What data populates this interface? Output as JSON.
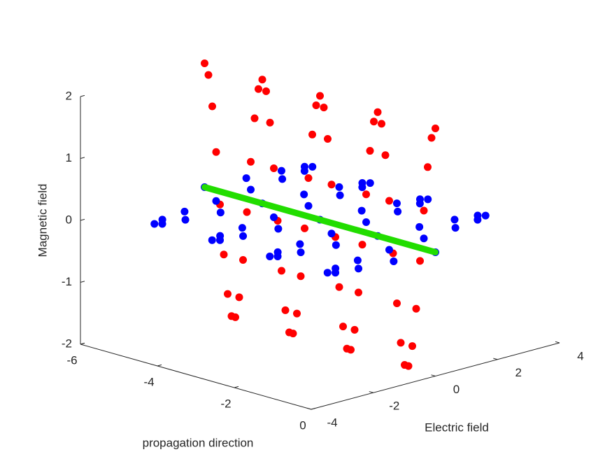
{
  "chart_data": {
    "type": "scatter3d",
    "x_label": "propagation direction",
    "y_label": "Electric field",
    "z_label": "Magnetic field",
    "xlim": [
      -6,
      0
    ],
    "xticks": [
      -6,
      -4,
      -2,
      0
    ],
    "ylim": [
      -4,
      4
    ],
    "yticks": [
      -4,
      -2,
      0,
      2,
      4
    ],
    "zlim": [
      -2,
      2
    ],
    "zticks": [
      -2,
      -1,
      0,
      1,
      2
    ],
    "x": [
      -6,
      -5.9,
      -5.8,
      -5.7,
      -5.6,
      -5.5,
      -5.4,
      -5.3,
      -5.2,
      -5.1,
      -5,
      -4.9,
      -4.8,
      -4.7,
      -4.6,
      -4.5,
      -4.4,
      -4.3,
      -4.2,
      -4.1,
      -4,
      -3.9,
      -3.8,
      -3.7,
      -3.6,
      -3.5,
      -3.4,
      -3.3,
      -3.2,
      -3.1,
      -3,
      -2.9,
      -2.8,
      -2.7,
      -2.6,
      -2.5,
      -2.4,
      -2.3,
      -2.2,
      -2.1,
      -2,
      -1.9,
      -1.8,
      -1.7,
      -1.6,
      -1.5,
      -1.4,
      -1.3,
      -1.2,
      -1.1,
      -1,
      -0.9,
      -0.8,
      -0.7,
      -0.6,
      -0.5,
      -0.4,
      -0.3,
      -0.2,
      -0.1,
      0
    ],
    "series": [
      {
        "type": "scatter",
        "color": "#ff0000",
        "electric": [
          0,
          0,
          0,
          0,
          0,
          0,
          0,
          0,
          0,
          0,
          0,
          0,
          0,
          0,
          0,
          0,
          0,
          0,
          0,
          0,
          0,
          0,
          0,
          0,
          0,
          0,
          0,
          0,
          0,
          0,
          0,
          0,
          0,
          0,
          0,
          0,
          0,
          0,
          0,
          0,
          0,
          0,
          0,
          0,
          0,
          0,
          0,
          0,
          0,
          0,
          0,
          0,
          0,
          0,
          0,
          0,
          0,
          0,
          0,
          0,
          0
        ],
        "magnetic": [
          2,
          1.83,
          1.34,
          0.62,
          -0.21,
          -1,
          -1.62,
          -1.96,
          -1.96,
          -1.62,
          -1,
          -0.21,
          0.62,
          1.34,
          1.83,
          2,
          1.83,
          1.34,
          0.62,
          -0.21,
          -1,
          -1.62,
          -1.96,
          -1.96,
          -1.62,
          -1,
          -0.21,
          0.62,
          1.34,
          1.83,
          2,
          1.83,
          1.34,
          0.62,
          -0.21,
          -1,
          -1.62,
          -1.96,
          -1.96,
          -1.62,
          -1,
          -0.21,
          0.62,
          1.34,
          1.83,
          2,
          1.83,
          1.34,
          0.62,
          -0.21,
          -1,
          -1.62,
          -1.96,
          -1.96,
          -1.62,
          -1,
          -0.21,
          0.62,
          1.34,
          1.83,
          2
        ]
      },
      {
        "type": "scatter",
        "color": "#0000ff",
        "electric": [
          0,
          1.22,
          2.23,
          2.85,
          2.98,
          2.6,
          1.76,
          0.62,
          -0.62,
          -1.76,
          -2.6,
          -2.98,
          -2.85,
          -2.23,
          -1.22,
          0,
          1.22,
          2.23,
          2.85,
          2.98,
          2.6,
          1.76,
          0.62,
          -0.62,
          -1.76,
          -2.6,
          -2.98,
          -2.85,
          -2.23,
          -1.22,
          0,
          1.22,
          2.23,
          2.85,
          2.98,
          2.6,
          1.76,
          0.62,
          -0.62,
          -1.76,
          -2.6,
          -2.98,
          -2.85,
          -2.23,
          -1.22,
          0,
          1.22,
          2.23,
          2.85,
          2.98,
          2.6,
          1.76,
          0.62,
          -0.62,
          -1.76,
          -2.6,
          -2.98,
          -2.85,
          -2.23,
          -1.22,
          0
        ],
        "magnetic": [
          0,
          0,
          0,
          0,
          0,
          0,
          0,
          0,
          0,
          0,
          0,
          0,
          0,
          0,
          0,
          0,
          0,
          0,
          0,
          0,
          0,
          0,
          0,
          0,
          0,
          0,
          0,
          0,
          0,
          0,
          0,
          0,
          0,
          0,
          0,
          0,
          0,
          0,
          0,
          0,
          0,
          0,
          0,
          0,
          0,
          0,
          0,
          0,
          0,
          0,
          0,
          0,
          0,
          0,
          0,
          0,
          0,
          0,
          0,
          0,
          0
        ]
      },
      {
        "type": "line",
        "color": "#22dd00",
        "x": [
          -6,
          0
        ],
        "electric": [
          0,
          0
        ],
        "magnetic": [
          0,
          0
        ]
      }
    ]
  }
}
